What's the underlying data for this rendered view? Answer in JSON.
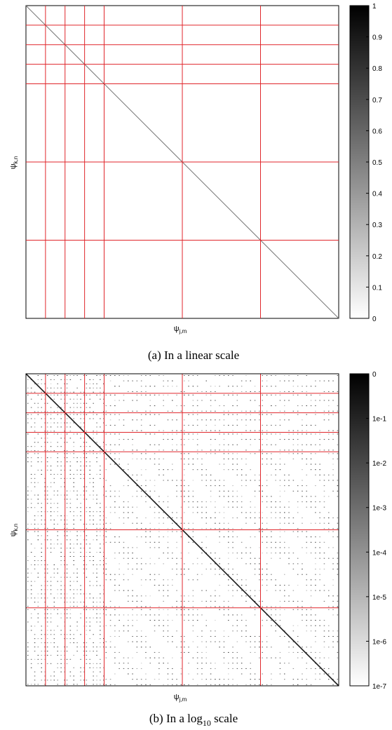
{
  "chart_data": [
    {
      "type": "heatmap",
      "caption": "(a)  In a linear scale",
      "xlabel": "ψj,m",
      "ylabel": "ψk,n",
      "colorbar": {
        "range": [
          0,
          1
        ],
        "ticks": [
          "0",
          "0.1",
          "0.2",
          "0.3",
          "0.4",
          "0.5",
          "0.6",
          "0.7",
          "0.8",
          "0.9",
          "1"
        ]
      },
      "diagonal_value": 1,
      "offdiagonal_value": 0,
      "block_boundaries": [
        0.0625,
        0.125,
        0.1875,
        0.25,
        0.5,
        0.75
      ],
      "grid_color": "#e0262b"
    },
    {
      "type": "heatmap",
      "caption": "(b)  In a log10 scale",
      "xlabel": "ψj,m",
      "ylabel": "ψk,n",
      "colorbar": {
        "range": [
          -7,
          0
        ],
        "scale": "log10",
        "ticks": [
          "1e-7",
          "1e-6",
          "1e-5",
          "1e-4",
          "1e-3",
          "1e-2",
          "1e-1",
          "0"
        ]
      },
      "diagonal_value": 0,
      "block_boundaries": [
        0.0625,
        0.125,
        0.1875,
        0.25,
        0.5,
        0.75
      ],
      "grid_color": "#e0262b"
    }
  ]
}
